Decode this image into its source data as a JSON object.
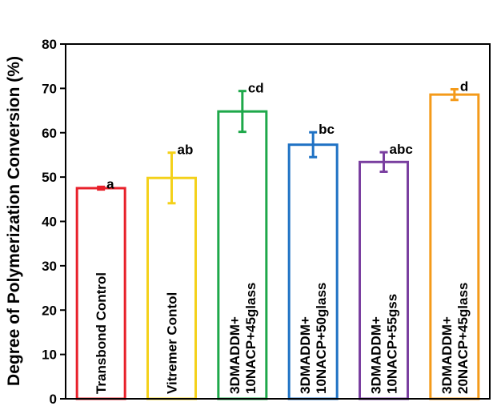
{
  "chart_data": {
    "type": "bar",
    "title": "",
    "xlabel": "",
    "ylabel": "Degree of Polymerization Conversion (%)",
    "ylim": [
      0,
      80
    ],
    "yticks": [
      "0",
      "10",
      "20",
      "30",
      "40",
      "50",
      "60",
      "70",
      "80"
    ],
    "grid": false,
    "bar_fill": "#ffffff",
    "bars": [
      {
        "category": [
          "Transbond Control"
        ],
        "value": 47.5,
        "error": 0.3,
        "significance": "a",
        "color": "#e8202a"
      },
      {
        "category": [
          "Vitremer Contol"
        ],
        "value": 49.8,
        "error": 5.7,
        "significance": "ab",
        "color": "#f4d11a"
      },
      {
        "category": [
          "3DMADDM+",
          "10NACP+45glass"
        ],
        "value": 64.8,
        "error": 4.6,
        "significance": "cd",
        "color": "#1ea84a"
      },
      {
        "category": [
          "3DMADDM+",
          "10NACP+50glass"
        ],
        "value": 57.3,
        "error": 2.8,
        "significance": "bc",
        "color": "#1f72c4"
      },
      {
        "category": [
          "3DMADDM+",
          "10NACP+55gss"
        ],
        "value": 53.4,
        "error": 2.2,
        "significance": "abc",
        "color": "#7a3fa0"
      },
      {
        "category": [
          "3DMADDM+",
          "20NACP+45glass"
        ],
        "value": 68.6,
        "error": 1.2,
        "significance": "d",
        "color": "#f49a1a"
      }
    ]
  }
}
